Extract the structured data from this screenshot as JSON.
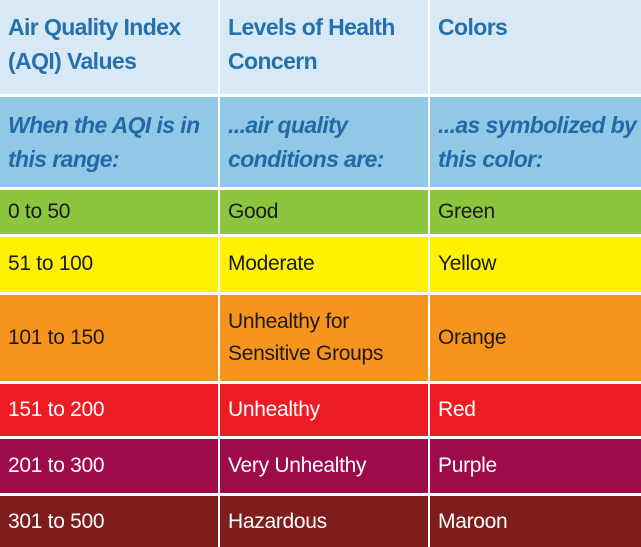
{
  "table": {
    "header": {
      "col1": "Air Quality Index (AQI) Values",
      "col2": "Levels of Health Concern",
      "col3": "Colors"
    },
    "subheader": {
      "col1": "When the AQI is in this range:",
      "col2": "...air quality conditions are:",
      "col3": "...as symbolized by this color:"
    },
    "rows": [
      {
        "range": "0 to 50",
        "level": "Good",
        "color": "Green",
        "bg": "#8cc63f"
      },
      {
        "range": "51 to 100",
        "level": "Moderate",
        "color": "Yellow",
        "bg": "#fff200"
      },
      {
        "range": "101 to 150",
        "level": "Unhealthy for Sensitive Groups",
        "color": "Orange",
        "bg": "#f7941d"
      },
      {
        "range": "151 to 200",
        "level": "Unhealthy",
        "color": "Red",
        "bg": "#ed1c24"
      },
      {
        "range": "201 to 300",
        "level": "Very Unhealthy",
        "color": "Purple",
        "bg": "#9e0b4b"
      },
      {
        "range": "301 to 500",
        "level": "Hazardous",
        "color": "Maroon",
        "bg": "#7f1d1d"
      }
    ],
    "colors": {
      "header_bg": "#d7e9f4",
      "subheader_bg": "#91c8e6",
      "header_text": "#2571ae"
    }
  }
}
